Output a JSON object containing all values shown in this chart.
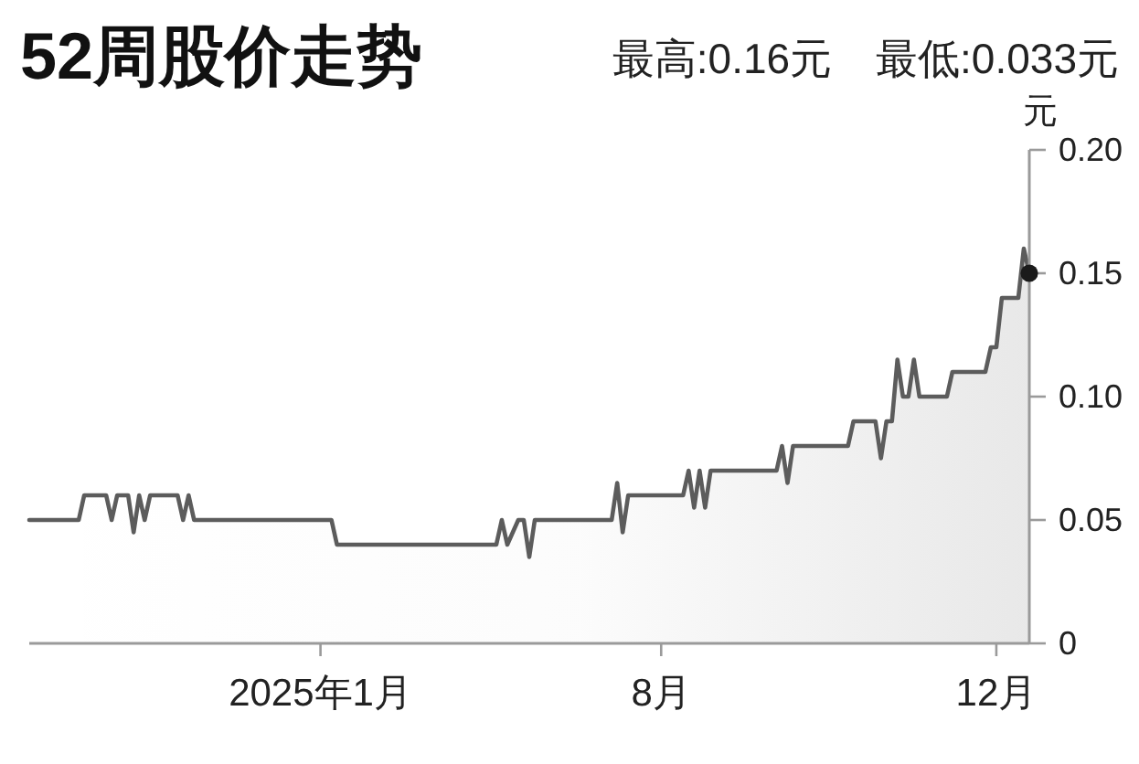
{
  "chart_data": {
    "type": "area",
    "title": "52周股价走势",
    "annotations": [
      "最高:0.16元",
      "最低:0.033元"
    ],
    "ylabel": "元",
    "categories": [
      null,
      null,
      null,
      null,
      null,
      null,
      null,
      null,
      null,
      null,
      null,
      null,
      null,
      null,
      null,
      null,
      null,
      null,
      null,
      null,
      null,
      null,
      null,
      null,
      null,
      null,
      null,
      null,
      null,
      null,
      null,
      null,
      null,
      null,
      null,
      null,
      null,
      null,
      null,
      null,
      null,
      null,
      null,
      null,
      null,
      null,
      null,
      null,
      null,
      null,
      null,
      null,
      null,
      "2025年1月",
      null,
      null,
      null,
      null,
      null,
      null,
      null,
      null,
      null,
      null,
      null,
      null,
      null,
      null,
      null,
      null,
      null,
      null,
      null,
      null,
      null,
      null,
      null,
      null,
      null,
      null,
      null,
      null,
      null,
      null,
      null,
      null,
      null,
      null,
      null,
      null,
      null,
      null,
      null,
      null,
      null,
      null,
      null,
      null,
      null,
      null,
      null,
      null,
      null,
      null,
      null,
      null,
      null,
      null,
      null,
      null,
      null,
      null,
      null,
      null,
      null,
      "8月",
      null,
      null,
      null,
      null,
      null,
      null,
      null,
      null,
      null,
      null,
      null,
      null,
      null,
      null,
      null,
      null,
      null,
      null,
      null,
      null,
      null,
      null,
      null,
      null,
      null,
      null,
      null,
      null,
      null,
      null,
      null,
      null,
      null,
      null,
      null,
      null,
      null,
      null,
      null,
      null,
      null,
      null,
      null,
      null,
      null,
      null,
      null,
      null,
      null,
      null,
      null,
      null,
      null,
      null,
      null,
      null,
      null,
      null,
      null,
      null,
      "12月",
      null,
      null,
      null,
      null,
      null,
      null
    ],
    "series": [
      {
        "color": "#5c5c5c",
        "values": [
          0.05,
          0.05,
          0.05,
          0.05,
          0.05,
          0.05,
          0.05,
          0.05,
          0.05,
          0.05,
          0.06,
          0.06,
          0.06,
          0.06,
          0.06,
          0.05,
          0.06,
          0.06,
          0.06,
          0.045,
          0.06,
          0.05,
          0.06,
          0.06,
          0.06,
          0.06,
          0.06,
          0.06,
          0.05,
          0.06,
          0.05,
          0.05,
          0.05,
          0.05,
          0.05,
          0.05,
          0.05,
          0.05,
          0.05,
          0.05,
          0.05,
          0.05,
          0.05,
          0.05,
          0.05,
          0.05,
          0.05,
          0.05,
          0.05,
          0.05,
          0.05,
          0.05,
          0.05,
          0.05,
          0.05,
          0.05,
          0.04,
          0.04,
          0.04,
          0.04,
          0.04,
          0.04,
          0.04,
          0.04,
          0.04,
          0.04,
          0.04,
          0.04,
          0.04,
          0.04,
          0.04,
          0.04,
          0.04,
          0.04,
          0.04,
          0.04,
          0.04,
          0.04,
          0.04,
          0.04,
          0.04,
          0.04,
          0.04,
          0.04,
          0.04,
          0.04,
          0.05,
          0.04,
          0.045,
          0.05,
          0.05,
          0.035,
          0.05,
          0.05,
          0.05,
          0.05,
          0.05,
          0.05,
          0.05,
          0.05,
          0.05,
          0.05,
          0.05,
          0.05,
          0.05,
          0.05,
          0.05,
          0.065,
          0.045,
          0.06,
          0.06,
          0.06,
          0.06,
          0.06,
          0.06,
          0.06,
          0.06,
          0.06,
          0.06,
          0.06,
          0.07,
          0.055,
          0.07,
          0.055,
          0.07,
          0.07,
          0.07,
          0.07,
          0.07,
          0.07,
          0.07,
          0.07,
          0.07,
          0.07,
          0.07,
          0.07,
          0.07,
          0.08,
          0.065,
          0.08,
          0.08,
          0.08,
          0.08,
          0.08,
          0.08,
          0.08,
          0.08,
          0.08,
          0.08,
          0.08,
          0.09,
          0.09,
          0.09,
          0.09,
          0.09,
          0.075,
          0.09,
          0.09,
          0.115,
          0.1,
          0.1,
          0.115,
          0.1,
          0.1,
          0.1,
          0.1,
          0.1,
          0.1,
          0.11,
          0.11,
          0.11,
          0.11,
          0.11,
          0.11,
          0.11,
          0.12,
          0.12,
          0.14,
          0.14,
          0.14,
          0.14,
          0.16,
          0.15
        ]
      },
      {
        "type": "scatter",
        "color": "#1a1a1a",
        "marker": "circle",
        "values": [
          null,
          null,
          null,
          null,
          null,
          null,
          null,
          null,
          null,
          null,
          null,
          null,
          null,
          null,
          null,
          null,
          null,
          null,
          null,
          null,
          null,
          null,
          null,
          null,
          null,
          null,
          null,
          null,
          null,
          null,
          null,
          null,
          null,
          null,
          null,
          null,
          null,
          null,
          null,
          null,
          null,
          null,
          null,
          null,
          null,
          null,
          null,
          null,
          null,
          null,
          null,
          null,
          null,
          null,
          null,
          null,
          null,
          null,
          null,
          null,
          null,
          null,
          null,
          null,
          null,
          null,
          null,
          null,
          null,
          null,
          null,
          null,
          null,
          null,
          null,
          null,
          null,
          null,
          null,
          null,
          null,
          null,
          null,
          null,
          null,
          null,
          null,
          null,
          null,
          null,
          null,
          null,
          null,
          null,
          null,
          null,
          null,
          null,
          null,
          null,
          null,
          null,
          null,
          null,
          null,
          null,
          null,
          null,
          null,
          null,
          null,
          null,
          null,
          null,
          null,
          null,
          null,
          null,
          null,
          null,
          null,
          null,
          null,
          null,
          null,
          null,
          null,
          null,
          null,
          null,
          null,
          null,
          null,
          null,
          null,
          null,
          null,
          null,
          null,
          null,
          null,
          null,
          null,
          null,
          null,
          null,
          null,
          null,
          null,
          null,
          null,
          null,
          null,
          null,
          null,
          null,
          null,
          null,
          null,
          null,
          null,
          null,
          null,
          null,
          null,
          null,
          null,
          null,
          null,
          null,
          null,
          null,
          null,
          null,
          null,
          null,
          null,
          null,
          null,
          null,
          null,
          null,
          0.15
        ]
      }
    ],
    "ylim": [
      0,
      0.2
    ],
    "yticks": [
      0,
      0.05,
      {
        "value": 0.1,
        "label": "0.10"
      },
      0.15,
      {
        "value": 0.2,
        "label": "0.20"
      }
    ]
  }
}
